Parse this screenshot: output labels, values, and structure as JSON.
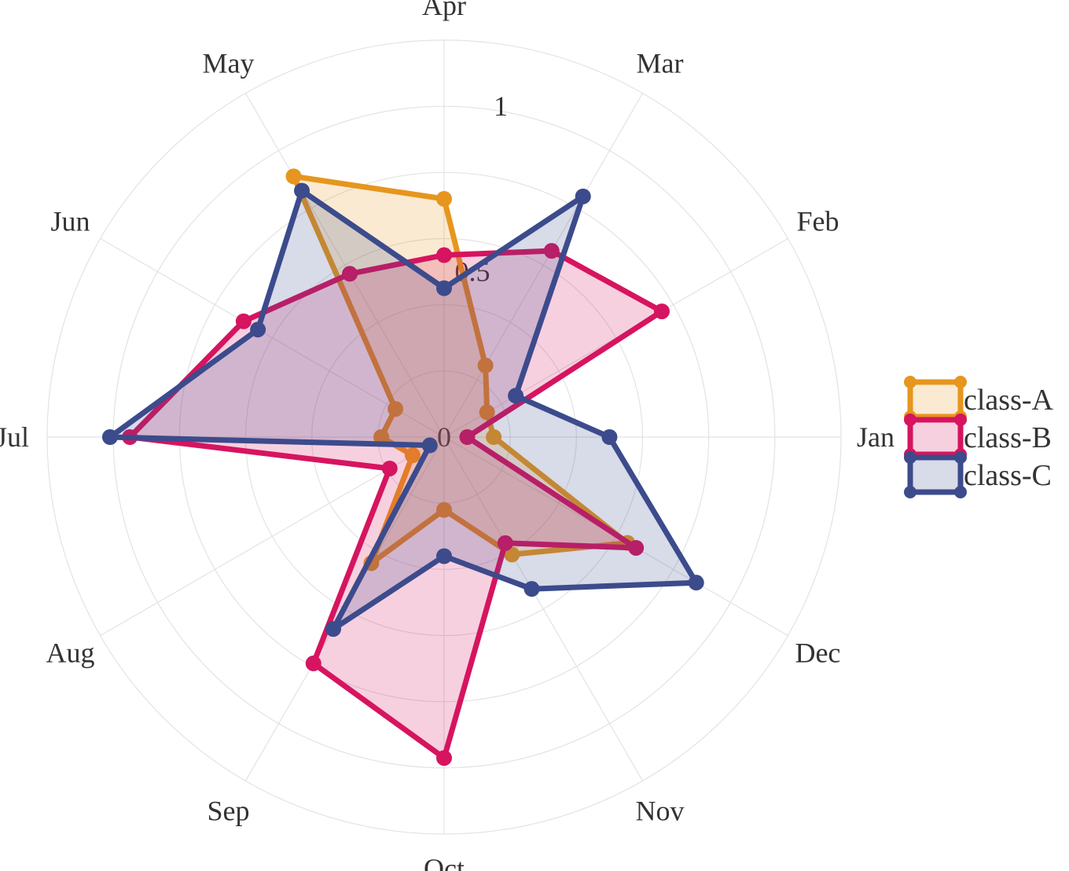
{
  "chart_data": {
    "type": "radar",
    "categories": [
      "Jan",
      "Feb",
      "Mar",
      "Apr",
      "May",
      "Jun",
      "Jul",
      "Aug",
      "Sep",
      "Oct",
      "Nov",
      "Dec"
    ],
    "radial_ticks": [
      "0",
      "0.5",
      "1"
    ],
    "rlim": [
      0,
      1.2
    ],
    "grid": true,
    "legend_position": "right",
    "series": [
      {
        "name": "class-A",
        "color": "#e6961e",
        "values": [
          0.15,
          0.15,
          0.25,
          0.72,
          0.91,
          0.17,
          0.19,
          0.11,
          0.44,
          0.22,
          0.41,
          0.64
        ]
      },
      {
        "name": "class-B",
        "color": "#d6145f",
        "values": [
          0.07,
          0.76,
          0.65,
          0.55,
          0.57,
          0.7,
          0.95,
          0.19,
          0.79,
          0.97,
          0.37,
          0.67
        ]
      },
      {
        "name": "class-C",
        "color": "#3c4b8c",
        "values": [
          0.5,
          0.25,
          0.84,
          0.45,
          0.86,
          0.65,
          1.01,
          0.05,
          0.67,
          0.36,
          0.53,
          0.88
        ]
      }
    ]
  }
}
